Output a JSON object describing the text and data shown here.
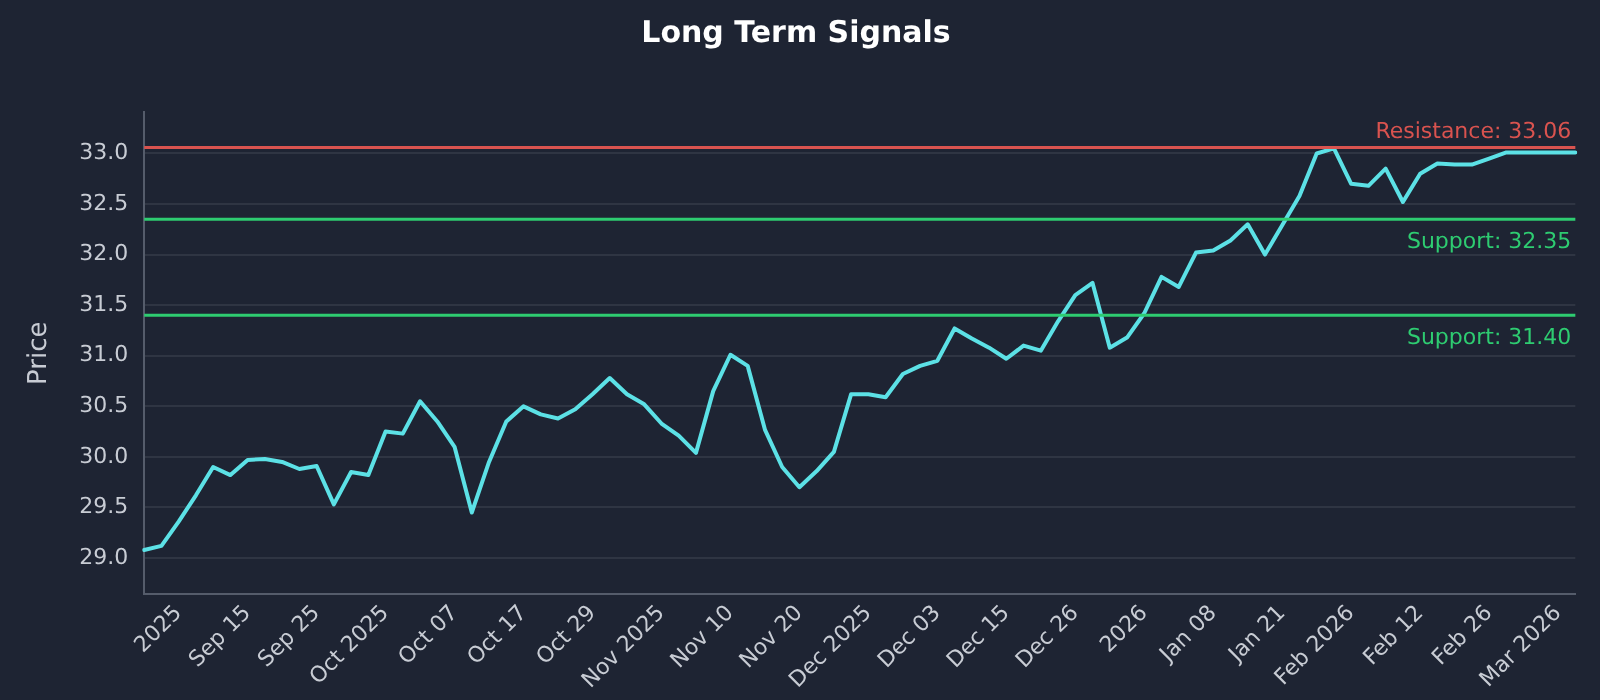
{
  "chart_data": {
    "type": "line",
    "title": "Long Term Signals",
    "ylabel": "Price",
    "categories": [
      null,
      null,
      "2025",
      null,
      null,
      null,
      "Sep 15",
      null,
      null,
      null,
      "Sep 25",
      null,
      null,
      null,
      "Oct 2025",
      null,
      null,
      null,
      "Oct 07",
      null,
      null,
      null,
      "Oct 17",
      null,
      null,
      null,
      "Oct 29",
      null,
      null,
      null,
      "Nov 2025",
      null,
      null,
      null,
      "Nov 10",
      null,
      null,
      null,
      "Nov 20",
      null,
      null,
      null,
      "Dec 2025",
      null,
      null,
      null,
      "Dec 03",
      null,
      null,
      null,
      "Dec 15",
      null,
      null,
      null,
      "Dec 26",
      null,
      null,
      null,
      "2026",
      null,
      null,
      null,
      "Jan 08",
      null,
      null,
      null,
      "Jan 21",
      null,
      null,
      null,
      "Feb 2026",
      null,
      null,
      null,
      "Feb 12",
      null,
      null,
      null,
      "Feb 26",
      null,
      null,
      null,
      "Mar 2026",
      null
    ],
    "series": [
      {
        "color": "#5ce1e6",
        "values": [
          29.08,
          29.12,
          29.36,
          29.62,
          29.9,
          29.82,
          29.97,
          29.98,
          29.95,
          29.88,
          29.91,
          29.53,
          29.85,
          29.82,
          30.25,
          30.23,
          30.55,
          30.35,
          30.1,
          29.45,
          29.95,
          30.35,
          30.5,
          30.42,
          30.38,
          30.47,
          30.62,
          30.78,
          30.62,
          30.52,
          30.33,
          30.21,
          30.04,
          30.65,
          31.01,
          30.9,
          30.27,
          29.9,
          29.7,
          29.86,
          30.05,
          30.62,
          30.62,
          30.59,
          30.82,
          30.9,
          30.95,
          31.27,
          31.17,
          31.08,
          30.97,
          31.1,
          31.05,
          31.34,
          31.6,
          31.72,
          31.08,
          31.18,
          31.42,
          31.78,
          31.68,
          32.02,
          32.04,
          32.14,
          32.3,
          32.0,
          32.29,
          32.58,
          33.0,
          33.05,
          32.7,
          32.68,
          32.85,
          32.52,
          32.8,
          32.9,
          32.89,
          32.89,
          32.95,
          33.01,
          33.01,
          33.01,
          33.01,
          33.01
        ]
      }
    ],
    "ylim": [
      28.64,
      33.41
    ],
    "yticks": [
      {
        "value": 29,
        "label": "29.0"
      },
      29.5,
      {
        "value": 30,
        "label": "30.0"
      },
      30.5,
      {
        "value": 31,
        "label": "31.0"
      },
      31.5,
      {
        "value": 32,
        "label": "32.0"
      },
      32.5,
      {
        "value": 33,
        "label": "33.0"
      }
    ],
    "grid": "y",
    "legend": false,
    "marker": "none",
    "line_style": "solid",
    "ref_lines": [
      {
        "axis": "y",
        "value": 33.06,
        "label": "Resistance: 33.06",
        "color": "#d9534f"
      },
      {
        "axis": "y",
        "value": 32.35,
        "label": "Support: 32.35",
        "color": "#2ecc71"
      },
      {
        "axis": "y",
        "value": 31.4,
        "label": "Support: 31.40",
        "color": "#2ecc71"
      }
    ]
  }
}
